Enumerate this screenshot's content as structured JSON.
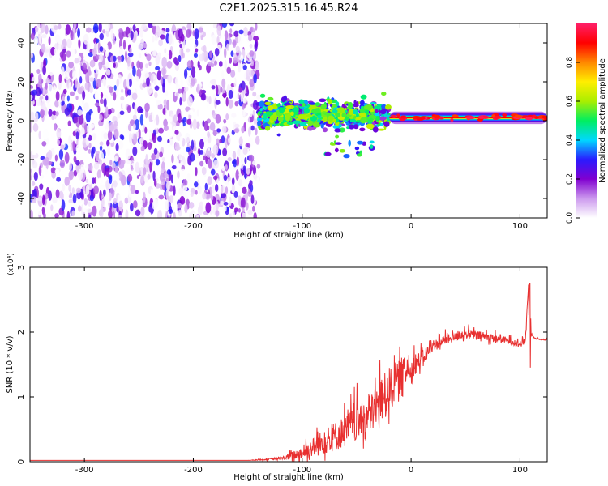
{
  "title": "C2E1.2025.315.16.45.R24",
  "chart_data": [
    {
      "type": "heatmap",
      "title": "C2E1.2025.315.16.45.R24",
      "xlabel": "Height of straight line (km)",
      "ylabel": "Frequency (Hz)",
      "xlim": [
        -350,
        125
      ],
      "ylim": [
        -50,
        50
      ],
      "xticks": [
        -300,
        -200,
        -100,
        0,
        100
      ],
      "yticks": [
        -40,
        -20,
        0,
        20,
        40
      ],
      "xtick_labels": [
        "-300",
        "-200",
        "-100",
        "0",
        "100"
      ],
      "ytick_labels": [
        "-40",
        "-20",
        "0",
        "20",
        "40"
      ],
      "colorbar": {
        "label": "Normalized spectral amplitude",
        "range": [
          0,
          1
        ],
        "ticks": [
          0.0,
          0.2,
          0.4,
          0.6,
          0.8
        ],
        "tick_labels": [
          "0.0",
          "0.2",
          "0.4",
          "0.6",
          "0.8"
        ],
        "colors": [
          "#ffffff",
          "#cc99ee",
          "#8000d0",
          "#2a1bff",
          "#00d8ff",
          "#00ee60",
          "#aaee00",
          "#ffee00",
          "#ff8800",
          "#ff0000",
          "#ff2068"
        ]
      },
      "regions": [
        {
          "name": "noise",
          "x_range": [
            -350,
            -140
          ],
          "freq_range": [
            -50,
            50
          ],
          "amplitude": 0.1
        },
        {
          "name": "signal-onset",
          "x_range": [
            -140,
            -20
          ],
          "freq_center": 3,
          "freq_spread": 6,
          "amplitude": 0.5
        },
        {
          "name": "echo-trace",
          "x_range": [
            -20,
            125
          ],
          "freq_center": 1.5,
          "freq_spread": 2,
          "amplitude": 0.9
        }
      ]
    },
    {
      "type": "line",
      "title": "",
      "xlabel": "Height of straight line (km)",
      "ylabel": "SNR (10 * v/v)",
      "y_multiplier": "(x10⁴)",
      "xlim": [
        -350,
        125
      ],
      "ylim": [
        0,
        3
      ],
      "xticks": [
        -300,
        -200,
        -100,
        0,
        100
      ],
      "yticks": [
        0,
        1,
        2,
        3
      ],
      "xtick_labels": [
        "-300",
        "-200",
        "-100",
        "0",
        "100"
      ],
      "ytick_labels": [
        "0",
        "1",
        "2",
        "3"
      ],
      "color": "#e83030",
      "series": [
        {
          "name": "SNR",
          "x": [
            -350,
            -300,
            -250,
            -200,
            -150,
            -120,
            -100,
            -80,
            -60,
            -40,
            -30,
            -20,
            -10,
            0,
            10,
            20,
            30,
            40,
            50,
            60,
            70,
            80,
            90,
            100,
            105,
            108,
            110,
            115,
            120,
            125
          ],
          "values": [
            0.02,
            0.02,
            0.02,
            0.02,
            0.02,
            0.04,
            0.1,
            0.25,
            0.4,
            0.6,
            0.8,
            1.0,
            1.25,
            1.4,
            1.55,
            1.75,
            1.85,
            1.9,
            1.95,
            1.93,
            1.9,
            1.88,
            1.85,
            1.8,
            1.85,
            2.8,
            1.95,
            1.9,
            1.88,
            1.88
          ],
          "noise_amplitude": [
            0,
            0,
            0,
            0,
            0,
            0.04,
            0.2,
            0.4,
            0.5,
            0.6,
            0.7,
            0.7,
            0.5,
            0.35,
            0.25,
            0.18,
            0.15,
            0.14,
            0.14,
            0.14,
            0.14,
            0.12,
            0.1,
            0.08,
            0.1,
            0.1,
            0.05,
            0.02,
            0.02,
            0.02
          ]
        }
      ]
    }
  ]
}
